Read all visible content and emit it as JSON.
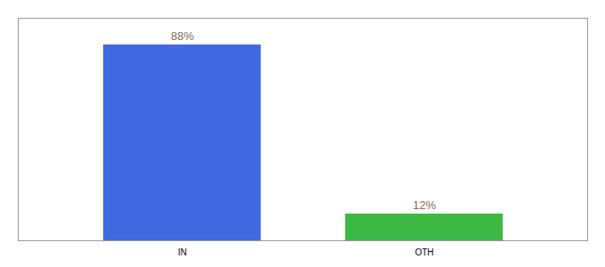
{
  "chart_data": {
    "type": "bar",
    "categories": [
      "IN",
      "OTH"
    ],
    "values": [
      88,
      12
    ],
    "colors": [
      "#4169e1",
      "#3cb943"
    ],
    "value_labels": [
      "88%",
      "12%"
    ],
    "data_labels": true,
    "ylim": [
      0,
      100
    ],
    "tick_labels": "x"
  }
}
